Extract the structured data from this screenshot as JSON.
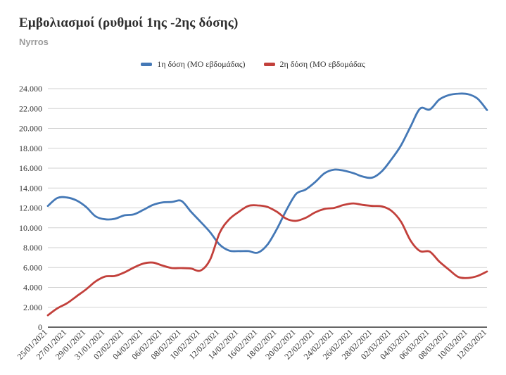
{
  "header": {
    "title": "Εμβολιασμοί (ρυθμοί 1ης -2ης δόσης)",
    "subtitle": "Nyrros"
  },
  "colors": {
    "series1": "#4478b6",
    "series2": "#c2403b",
    "grid": "#d2d2d2",
    "axis_line": "#333333",
    "tick_text": "#333333",
    "title_text": "#2e2e2e",
    "subtitle_text": "#9b9b9b",
    "background": "#ffffff"
  },
  "chart_data": {
    "type": "line",
    "title": "Εμβολιασμοί (ρυθμοί 1ης -2ης δόσης)",
    "subtitle": "Nyrros",
    "grid": true,
    "legend_position": "top",
    "ylim": [
      0,
      24000
    ],
    "ytick_step": 2000,
    "ytick_labels": [
      "0",
      "2.000",
      "4.000",
      "6.000",
      "8.000",
      "10.000",
      "12.000",
      "14.000",
      "16.000",
      "18.000",
      "20.000",
      "22.000",
      "24.000"
    ],
    "xtick_every": 2,
    "x": [
      "25/01/2021",
      "26/01/2021",
      "27/01/2021",
      "28/01/2021",
      "29/01/2021",
      "30/01/2021",
      "31/01/2021",
      "01/02/2021",
      "02/02/2021",
      "03/02/2021",
      "04/02/2021",
      "05/02/2021",
      "06/02/2021",
      "07/02/2021",
      "08/02/2021",
      "09/02/2021",
      "10/02/2021",
      "11/02/2021",
      "12/02/2021",
      "13/02/2021",
      "14/02/2021",
      "15/02/2021",
      "16/02/2021",
      "17/02/2021",
      "18/02/2021",
      "19/02/2021",
      "20/02/2021",
      "21/02/2021",
      "22/02/2021",
      "23/02/2021",
      "24/02/2021",
      "25/02/2021",
      "26/02/2021",
      "27/02/2021",
      "28/02/2021",
      "01/03/2021",
      "02/03/2021",
      "03/03/2021",
      "04/03/2021",
      "05/03/2021",
      "06/03/2021",
      "07/03/2021",
      "08/03/2021",
      "09/03/2021",
      "10/03/2021",
      "11/03/2021",
      "12/03/2021"
    ],
    "series": [
      {
        "name": "1η δόση (ΜΟ εβδομάδας)",
        "color_key": "series1",
        "values": [
          12200,
          13000,
          13050,
          12750,
          12100,
          11150,
          10850,
          10900,
          11250,
          11350,
          11800,
          12300,
          12550,
          12600,
          12700,
          11600,
          10600,
          9550,
          8300,
          7700,
          7650,
          7650,
          7500,
          8300,
          9900,
          11800,
          13400,
          13850,
          14600,
          15500,
          15850,
          15750,
          15500,
          15150,
          15050,
          15700,
          16900,
          18300,
          20200,
          22000,
          21900,
          22900,
          23350,
          23500,
          23450,
          23000,
          21850
        ]
      },
      {
        "name": "2η δόση (ΜΟ εβδομάδας",
        "color_key": "series2",
        "values": [
          1200,
          1900,
          2400,
          3100,
          3800,
          4600,
          5100,
          5150,
          5500,
          6000,
          6400,
          6500,
          6200,
          5950,
          5950,
          5900,
          5700,
          6800,
          9500,
          10850,
          11600,
          12200,
          12250,
          12100,
          11600,
          10900,
          10700,
          11000,
          11550,
          11900,
          12000,
          12300,
          12450,
          12300,
          12200,
          12150,
          11700,
          10600,
          8700,
          7650,
          7600,
          6600,
          5800,
          5050,
          4950,
          5150,
          5600
        ]
      }
    ]
  }
}
